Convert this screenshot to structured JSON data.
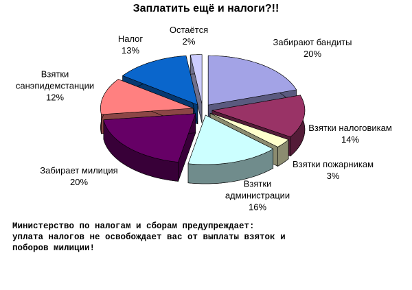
{
  "chart_data": {
    "type": "pie",
    "title": "Заплатить ещё и налоги?!!",
    "categories": [
      "Забирают бандиты",
      "Взятки налоговикам",
      "Взятки пожарникам",
      "Взятки администрации",
      "Забирает милиция",
      "Взятки санэпидемстанции",
      "Налог",
      "Остаётся"
    ],
    "values": [
      20,
      14,
      3,
      16,
      20,
      12,
      13,
      2
    ],
    "value_labels": [
      "20%",
      "14%",
      "3%",
      "16%",
      "20%",
      "12%",
      "13%",
      "2%"
    ],
    "colors": [
      "#a3a3e6",
      "#993366",
      "#ffffcc",
      "#ccffff",
      "#660066",
      "#ff8080",
      "#0a66cc",
      "#ccccff"
    ],
    "annotations": [
      "Министерство по налогам и сборам предупреждает:",
      "уплата налогов не освобождает вас от выплаты взяток и",
      "поборов милиции!"
    ]
  }
}
